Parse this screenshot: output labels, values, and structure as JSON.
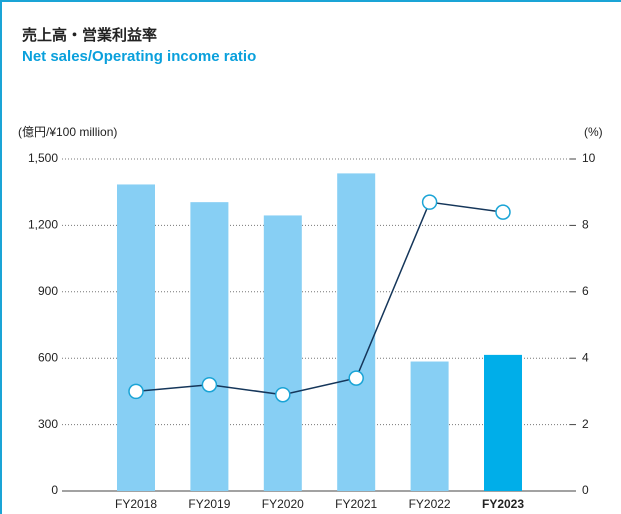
{
  "chart_data": {
    "type": "bar",
    "title": "売上高・営業利益率",
    "subtitle": "Net sales/Operating income ratio",
    "y_label": "(億円/¥100 million)",
    "y2_label": "(%)",
    "categories": [
      "FY2018",
      "FY2019",
      "FY2020",
      "FY2021",
      "FY2022",
      "FY2023"
    ],
    "series": [
      {
        "type": "bar",
        "colors": [
          "#87cff4",
          "#87cff4",
          "#87cff4",
          "#87cff4",
          "#87cff4",
          "#00aee9"
        ],
        "values": [
          1385,
          1305,
          1245,
          1435,
          585,
          615
        ]
      },
      {
        "type": "line",
        "axis": "y2",
        "color": "#15365a",
        "marker_color": "#1aa4d6",
        "values": [
          3.0,
          3.2,
          2.9,
          3.4,
          8.7,
          8.4
        ]
      }
    ],
    "ylim": [
      0,
      1500
    ],
    "yticks": [
      0,
      300,
      600,
      900,
      {
        "value": 1200,
        "label": "1,200"
      },
      {
        "value": 1500,
        "label": "1,500"
      }
    ],
    "y2lim": [
      0,
      10
    ],
    "y2ticks": [
      0,
      2,
      4,
      6,
      8,
      10
    ],
    "grid": true
  }
}
